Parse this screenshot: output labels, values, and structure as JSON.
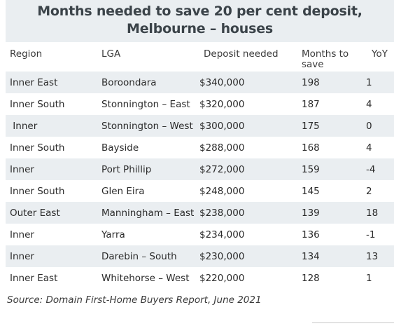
{
  "title": "Months needed to save 20 per cent deposit, Melbourne – houses",
  "columns": {
    "region": "Region",
    "lga": "LGA",
    "deposit": "Deposit needed",
    "months": "Months to save",
    "yoy": "YoY"
  },
  "rows": [
    {
      "region": "Inner East",
      "lga": "Boroondara",
      "deposit": "$340,000",
      "months": "198",
      "yoy": "1"
    },
    {
      "region": "Inner South",
      "lga": "Stonnington – East",
      "deposit": "$320,000",
      "months": "187",
      "yoy": "4"
    },
    {
      "region": " Inner",
      "lga": "Stonnington – West",
      "deposit": "$300,000",
      "months": "175",
      "yoy": "0"
    },
    {
      "region": "Inner South",
      "lga": "Bayside",
      "deposit": "$288,000",
      "months": "168",
      "yoy": "4"
    },
    {
      "region": "Inner",
      "lga": "Port Phillip",
      "deposit": "$272,000",
      "months": "159",
      "yoy": "-4"
    },
    {
      "region": "Inner South",
      "lga": "Glen Eira",
      "deposit": "$248,000",
      "months": "145",
      "yoy": "2"
    },
    {
      "region": "Outer East",
      "lga": "Manningham – East",
      "deposit": "$238,000",
      "months": "139",
      "yoy": "18"
    },
    {
      "region": "Inner",
      "lga": "Yarra",
      "deposit": "$234,000",
      "months": "136",
      "yoy": "-1"
    },
    {
      "region": "Inner",
      "lga": "Darebin – South",
      "deposit": "$230,000",
      "months": "134",
      "yoy": "13"
    },
    {
      "region": "Inner East",
      "lga": "Whitehorse – West",
      "deposit": "$220,000",
      "months": "128",
      "yoy": "1"
    }
  ],
  "source": "Source: Domain First-Home Buyers Report, June 2021"
}
